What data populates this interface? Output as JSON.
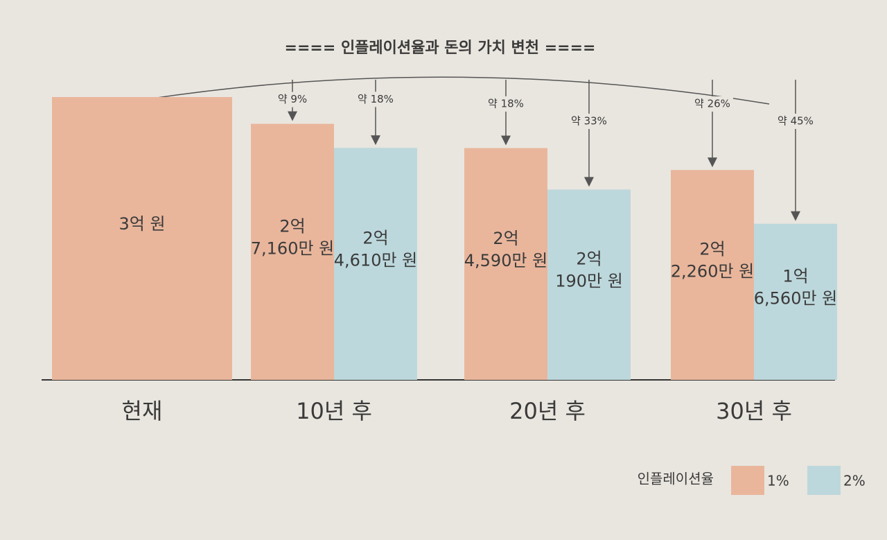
{
  "chart_data": {
    "type": "bar",
    "title": "==== 인플레이션율과 돈의 가치 변천 ====",
    "categories": [
      "현재",
      "10년 후",
      "20년 후",
      "30년 후"
    ],
    "legend_title": "인플레이션율",
    "series": [
      {
        "name": "1%",
        "color": "#e9b69c",
        "values": [
          300000000,
          271600000,
          245900000,
          222600000
        ],
        "value_labels": [
          "3억 원",
          "2억\n7,160만 원",
          "2억\n4,590만 원",
          "2억\n2,260만 원"
        ],
        "annotations": [
          null,
          "약 9%",
          "약 18%",
          "약 26%"
        ]
      },
      {
        "name": "2%",
        "color": "#bdd8dc",
        "values": [
          null,
          246100000,
          201900000,
          165600000
        ],
        "value_labels": [
          null,
          "2억\n4,610만 원",
          "2억\n190만 원",
          "1억\n6,560만 원"
        ],
        "annotations": [
          null,
          "약 18%",
          "약 33%",
          "약 45%"
        ]
      }
    ]
  }
}
